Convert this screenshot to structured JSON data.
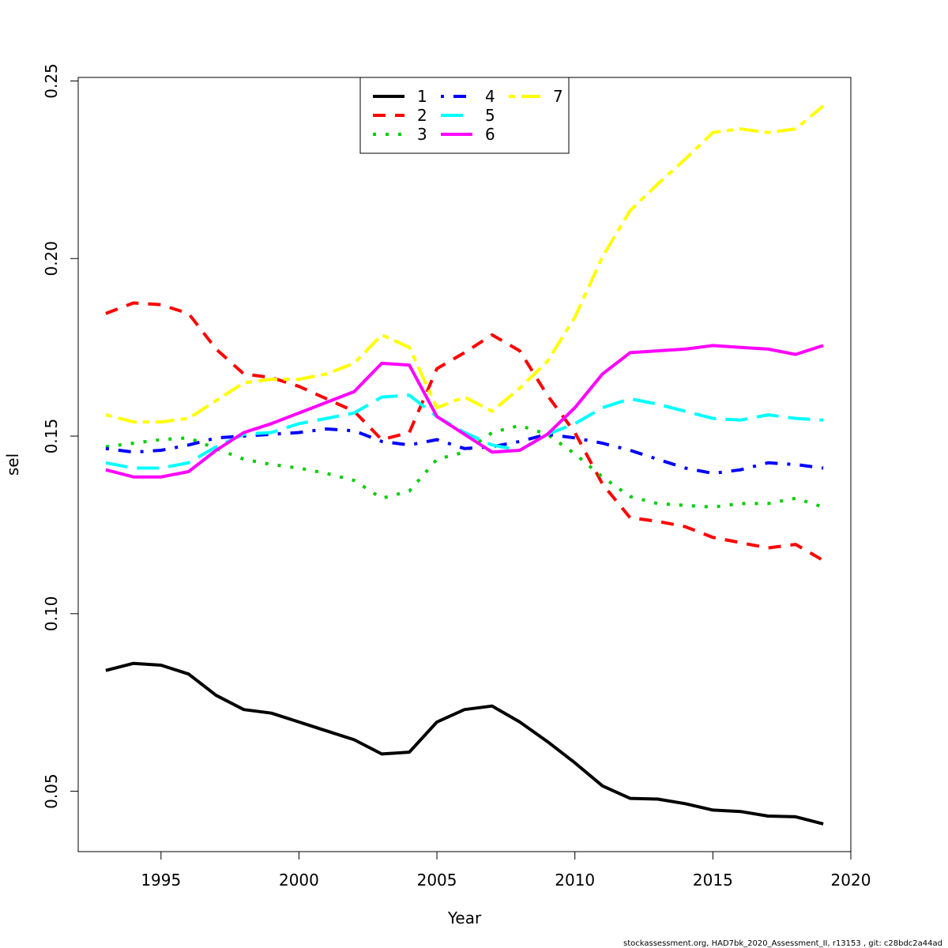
{
  "chart_data": {
    "type": "line",
    "title": "",
    "xlabel": "Year",
    "ylabel": "sel",
    "xlim": [
      1992,
      2020
    ],
    "ylim": [
      0.033,
      0.251
    ],
    "x_ticks": [
      1995,
      2000,
      2005,
      2010,
      2015,
      2020
    ],
    "y_ticks": [
      0.05,
      0.1,
      0.15,
      0.2,
      0.25
    ],
    "y_tick_labels": [
      "0.05",
      "0.10",
      "0.15",
      "0.20",
      "0.25"
    ],
    "x": [
      1993,
      1994,
      1995,
      1996,
      1997,
      1998,
      1999,
      2000,
      2001,
      2002,
      2003,
      2004,
      2005,
      2006,
      2007,
      2008,
      2009,
      2010,
      2011,
      2012,
      2013,
      2014,
      2015,
      2016,
      2017,
      2018,
      2019
    ],
    "grid": false,
    "legend_position": "top-center",
    "series": [
      {
        "name": "1",
        "color": "#000000",
        "dash": "solid",
        "values": [
          0.084,
          0.086,
          0.0855,
          0.083,
          0.077,
          0.073,
          0.072,
          0.0695,
          0.067,
          0.0645,
          0.0605,
          0.061,
          0.0695,
          0.073,
          0.074,
          0.0695,
          0.064,
          0.058,
          0.0515,
          0.048,
          0.0478,
          0.0465,
          0.0447,
          0.0443,
          0.043,
          0.0428,
          0.0408
        ]
      },
      {
        "name": "2",
        "color": "#ff0000",
        "dash": "dashed",
        "values": [
          0.1845,
          0.1875,
          0.187,
          0.1845,
          0.1745,
          0.1675,
          0.1665,
          0.164,
          0.1605,
          0.157,
          0.149,
          0.151,
          0.169,
          0.1735,
          0.1785,
          0.174,
          0.1615,
          0.151,
          0.1365,
          0.127,
          0.126,
          0.1245,
          0.1215,
          0.12,
          0.1185,
          0.1195,
          0.115
        ]
      },
      {
        "name": "3",
        "color": "#00cd00",
        "dash": "dotted",
        "values": [
          0.147,
          0.148,
          0.149,
          0.1495,
          0.1465,
          0.1435,
          0.142,
          0.141,
          0.1395,
          0.1375,
          0.1325,
          0.1345,
          0.1435,
          0.1455,
          0.151,
          0.153,
          0.1505,
          0.145,
          0.1385,
          0.133,
          0.131,
          0.1305,
          0.13,
          0.131,
          0.131,
          0.1325,
          0.13
        ]
      },
      {
        "name": "4",
        "color": "#0000ff",
        "dash": "dotdash",
        "values": [
          0.1465,
          0.1455,
          0.146,
          0.1475,
          0.1495,
          0.15,
          0.1505,
          0.151,
          0.152,
          0.1515,
          0.1485,
          0.1475,
          0.149,
          0.1465,
          0.147,
          0.1485,
          0.1505,
          0.1495,
          0.148,
          0.146,
          0.1435,
          0.141,
          0.1395,
          0.1405,
          0.1425,
          0.142,
          0.141
        ]
      },
      {
        "name": "5",
        "color": "#00ffff",
        "dash": "longdash",
        "values": [
          0.1425,
          0.141,
          0.141,
          0.1425,
          0.147,
          0.1505,
          0.151,
          0.1535,
          0.155,
          0.1565,
          0.161,
          0.1615,
          0.1555,
          0.151,
          0.1475,
          0.146,
          0.1505,
          0.1535,
          0.158,
          0.1605,
          0.159,
          0.157,
          0.155,
          0.1545,
          0.156,
          0.155,
          0.1545
        ]
      },
      {
        "name": "6",
        "color": "#ff00ff",
        "dash": "solid",
        "values": [
          0.1405,
          0.1385,
          0.1385,
          0.14,
          0.146,
          0.151,
          0.1535,
          0.1565,
          0.1595,
          0.1625,
          0.1705,
          0.17,
          0.1555,
          0.1505,
          0.1455,
          0.146,
          0.1505,
          0.158,
          0.1675,
          0.1735,
          0.174,
          0.1745,
          0.1755,
          0.175,
          0.1745,
          0.173,
          0.1755
        ]
      },
      {
        "name": "7",
        "color": "#ffff00",
        "dash": "twodash",
        "values": [
          0.156,
          0.154,
          0.154,
          0.155,
          0.16,
          0.165,
          0.166,
          0.166,
          0.1675,
          0.1705,
          0.1785,
          0.175,
          0.158,
          0.161,
          0.157,
          0.1635,
          0.171,
          0.1835,
          0.2005,
          0.2135,
          0.221,
          0.228,
          0.2355,
          0.2365,
          0.2355,
          0.2365,
          0.243
        ]
      }
    ]
  },
  "footer": "stockassessment.org, HAD7bk_2020_Assessment_II, r13153 , git: c28bdc2a44ad"
}
